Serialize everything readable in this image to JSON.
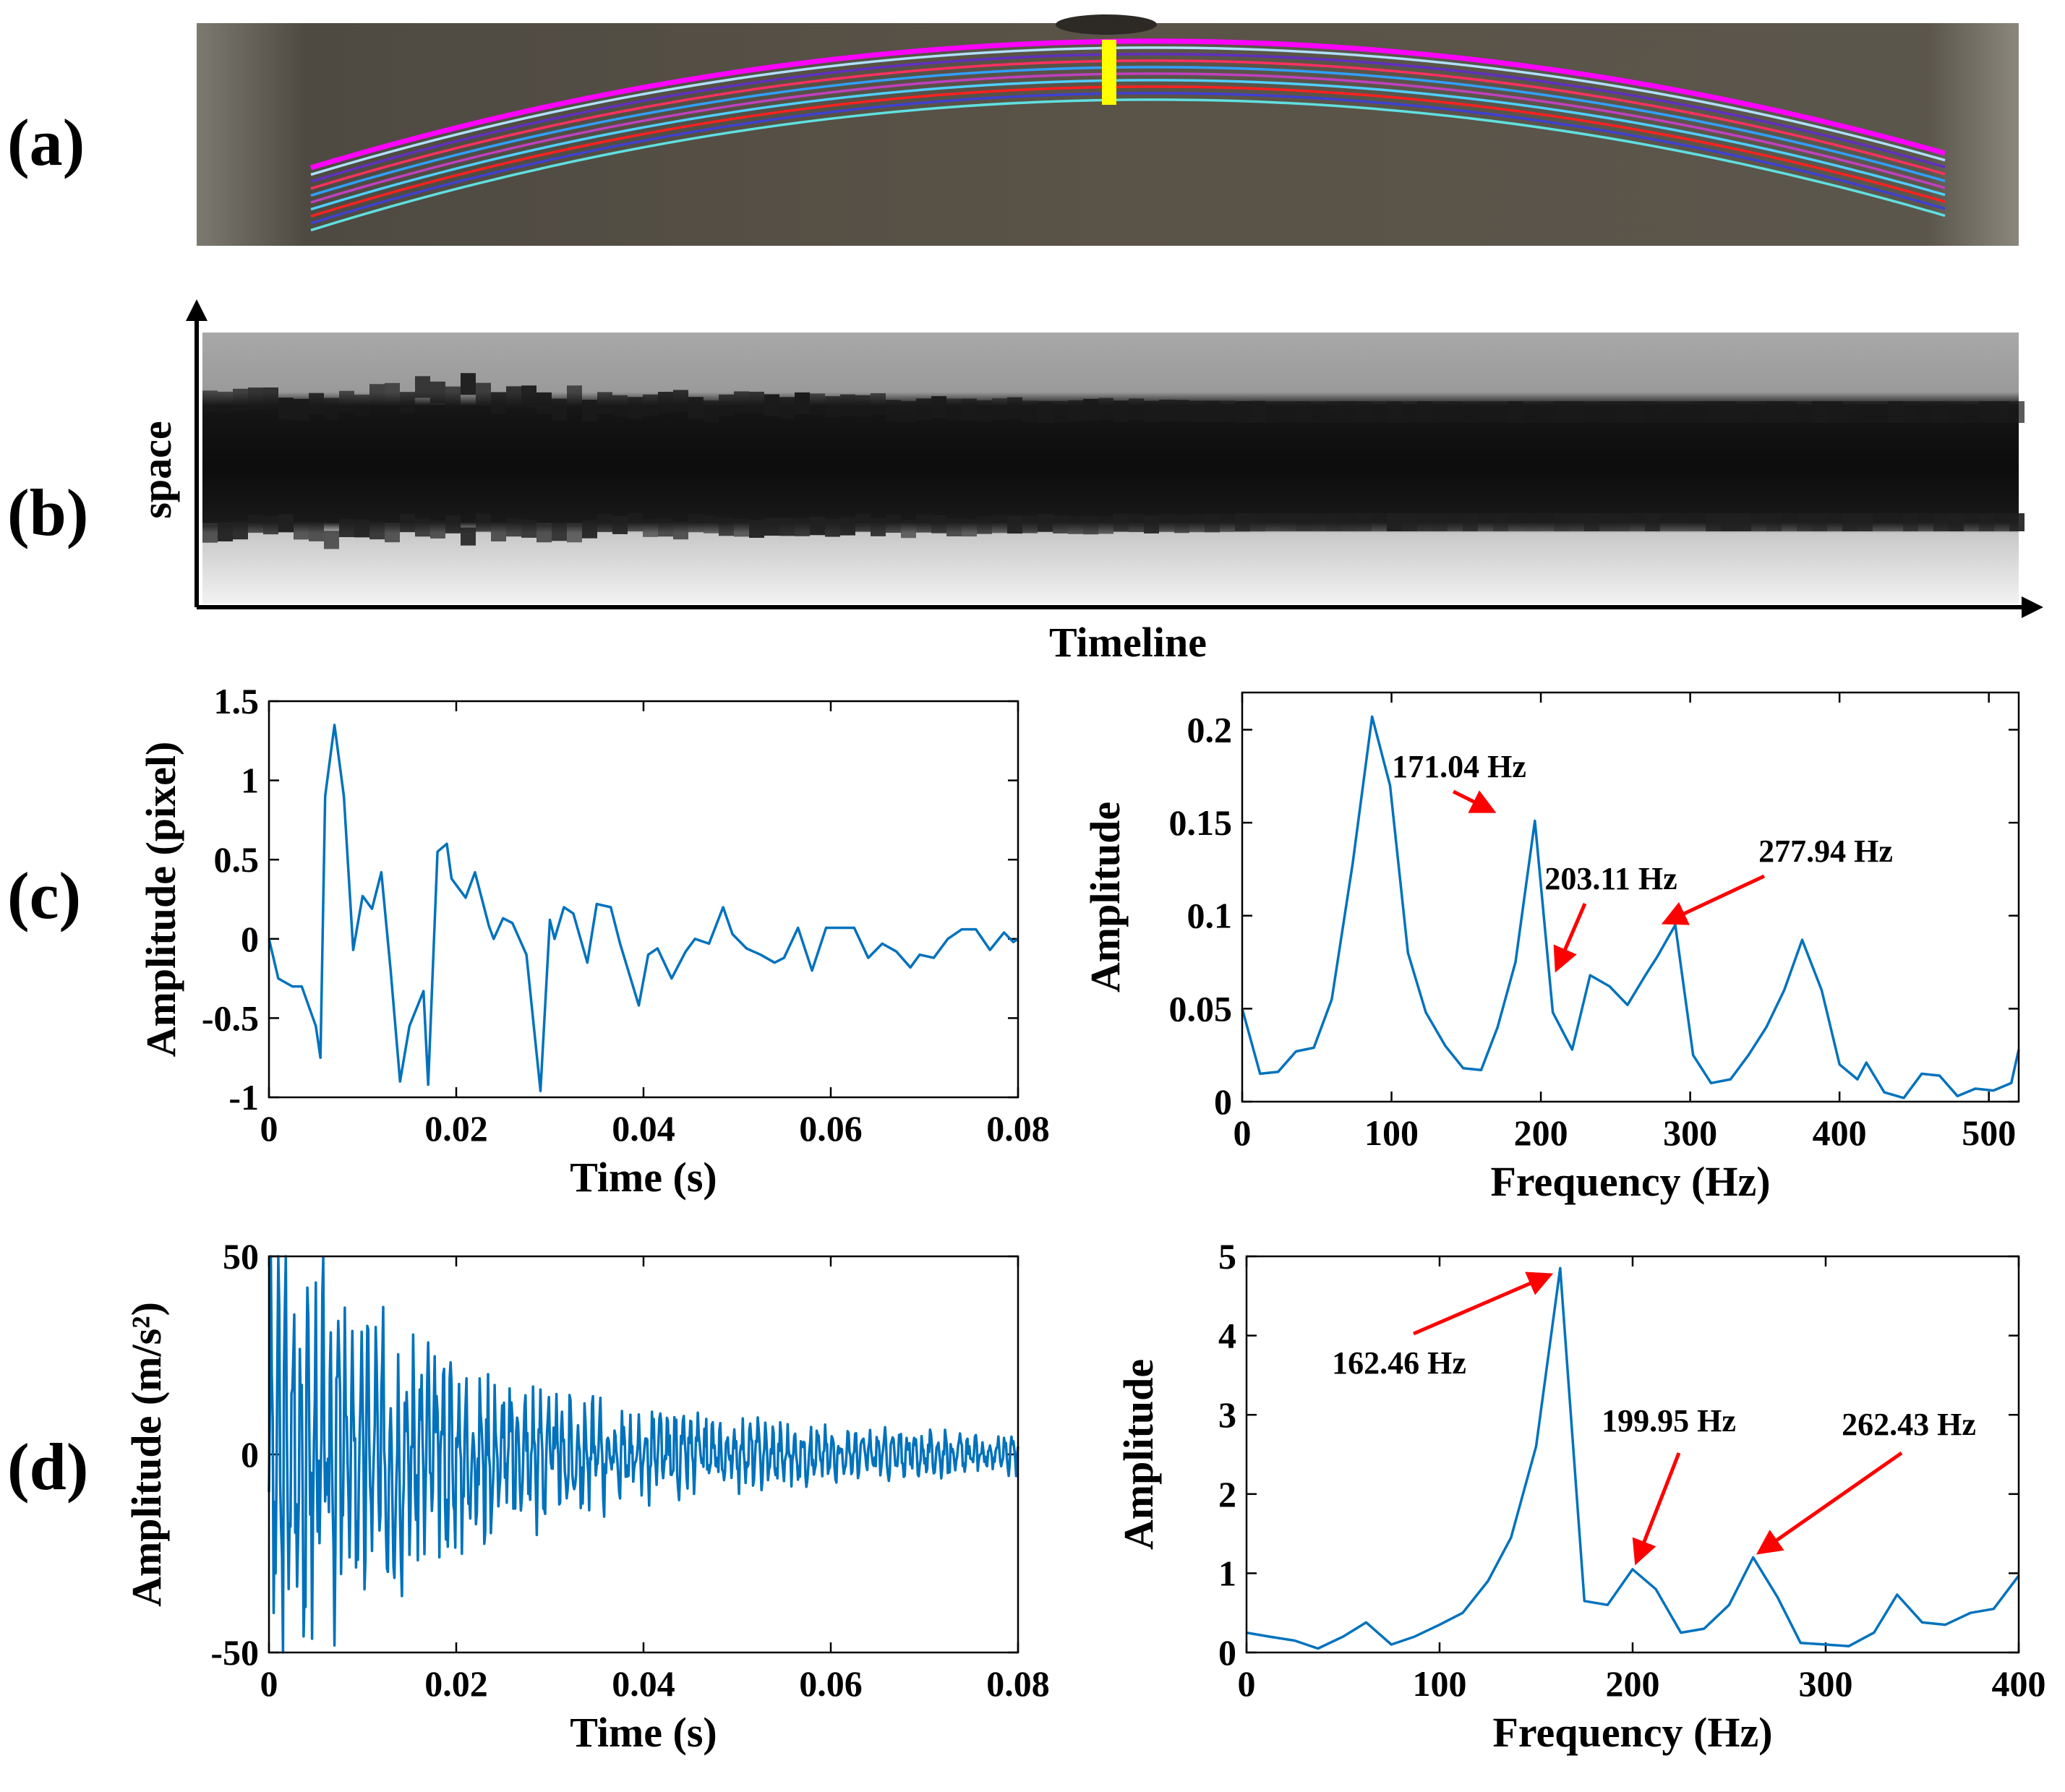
{
  "panel_labels": [
    "(a)",
    "(b)",
    "(c)",
    "(d)"
  ],
  "colors": {
    "series": "#0072BD",
    "annotation_arrow": "#FF0000",
    "marker_bar": "#FFFF00",
    "beam_edge": "#FF00FF"
  },
  "chart_data": [
    {
      "id": "a",
      "type": "image",
      "description_label": "(a)"
    },
    {
      "id": "b",
      "type": "heatmap",
      "ylabel": "space",
      "xlabel": "Timeline"
    },
    {
      "id": "c_time",
      "type": "line",
      "xlabel": "Time (s)",
      "ylabel": "Amplitude (pixel)",
      "xlim": [
        0,
        0.08
      ],
      "ylim": [
        -1,
        1.5
      ],
      "xticks": [
        0,
        0.02,
        0.04,
        0.06,
        0.08
      ],
      "xtick_labels": [
        "0",
        "0.02",
        "0.04",
        "0.06",
        "0.08"
      ],
      "yticks": [
        -1,
        -0.5,
        0,
        0.5,
        1,
        1.5
      ],
      "ytick_labels": [
        "-1",
        "-0.5",
        "0",
        "0.5",
        "1",
        "1.5"
      ],
      "x": [
        0,
        0.001,
        0.0025,
        0.0035,
        0.005,
        0.0055,
        0.006,
        0.007,
        0.008,
        0.009,
        0.01,
        0.011,
        0.012,
        0.013,
        0.014,
        0.015,
        0.0165,
        0.017,
        0.018,
        0.019,
        0.0195,
        0.021,
        0.022,
        0.0235,
        0.024,
        0.025,
        0.026,
        0.0275,
        0.029,
        0.03,
        0.0305,
        0.0315,
        0.0325,
        0.034,
        0.035,
        0.0365,
        0.0375,
        0.0395,
        0.0405,
        0.0415,
        0.043,
        0.0445,
        0.0455,
        0.047,
        0.0485,
        0.0495,
        0.051,
        0.0525,
        0.054,
        0.055,
        0.0565,
        0.058,
        0.0595,
        0.061,
        0.0625,
        0.064,
        0.0655,
        0.067,
        0.0685,
        0.0695,
        0.071,
        0.0725,
        0.074,
        0.0755,
        0.077,
        0.0785,
        0.0795,
        0.08
      ],
      "y": [
        0,
        -0.25,
        -0.3,
        -0.3,
        -0.55,
        -0.75,
        0.9,
        1.35,
        0.9,
        -0.07,
        0.27,
        0.19,
        0.42,
        -0.2,
        -0.9,
        -0.55,
        -0.33,
        -0.92,
        0.55,
        0.6,
        0.38,
        0.26,
        0.42,
        0.08,
        0.0,
        0.13,
        0.1,
        -0.1,
        -0.96,
        0.12,
        0.0,
        0.2,
        0.16,
        -0.15,
        0.22,
        0.2,
        -0.03,
        -0.42,
        -0.1,
        -0.06,
        -0.25,
        -0.08,
        0.0,
        -0.03,
        0.2,
        0.03,
        -0.06,
        -0.1,
        -0.15,
        -0.12,
        0.07,
        -0.2,
        0.07,
        0.07,
        0.07,
        -0.12,
        -0.03,
        -0.08,
        -0.18,
        -0.1,
        -0.12,
        0.0,
        0.06,
        0.06,
        -0.07,
        0.04,
        -0.02,
        0.0
      ]
    },
    {
      "id": "c_freq",
      "type": "line",
      "xlabel": "Frequency (Hz)",
      "ylabel": "Amplitude",
      "xlim": [
        0,
        520
      ],
      "ylim": [
        0,
        0.22
      ],
      "xticks": [
        0,
        100,
        200,
        300,
        400,
        500
      ],
      "xtick_labels": [
        "0",
        "100",
        "200",
        "300",
        "400",
        "500"
      ],
      "yticks": [
        0,
        0.05,
        0.1,
        0.15,
        0.2
      ],
      "ytick_labels": [
        "0",
        "0.05",
        "0.1",
        "0.15",
        "0.2"
      ],
      "x": [
        0,
        12,
        24,
        36,
        48,
        60,
        74,
        87,
        99,
        111,
        123,
        136,
        148,
        160,
        171,
        183,
        196,
        208,
        221,
        233,
        246,
        258,
        270,
        278,
        290,
        302,
        314,
        327,
        339,
        351,
        363,
        375,
        388,
        400,
        412,
        418,
        430,
        443,
        455,
        467,
        479,
        491,
        503,
        515,
        520
      ],
      "y": [
        0.05,
        0.015,
        0.016,
        0.027,
        0.029,
        0.055,
        0.128,
        0.207,
        0.17,
        0.08,
        0.048,
        0.03,
        0.018,
        0.017,
        0.04,
        0.075,
        0.151,
        0.048,
        0.028,
        0.068,
        0.062,
        0.052,
        0.068,
        0.078,
        0.095,
        0.025,
        0.01,
        0.012,
        0.025,
        0.04,
        0.06,
        0.087,
        0.06,
        0.02,
        0.012,
        0.021,
        0.005,
        0.002,
        0.015,
        0.014,
        0.003,
        0.007,
        0.006,
        0.01,
        0.028
      ],
      "annotations": [
        {
          "text": "171.04 Hz"
        },
        {
          "text": "203.11 Hz"
        },
        {
          "text": "277.94 Hz"
        }
      ]
    },
    {
      "id": "d_time",
      "type": "line",
      "xlabel": "Time (s)",
      "ylabel": "Amplitude (m/s²)",
      "xlim": [
        0,
        0.08
      ],
      "ylim": [
        -50,
        50
      ],
      "xticks": [
        0,
        0.02,
        0.04,
        0.06,
        0.08
      ],
      "xtick_labels": [
        "0",
        "0.02",
        "0.04",
        "0.06",
        "0.08"
      ],
      "yticks": [
        -50,
        0,
        50
      ],
      "ytick_labels": [
        "-50",
        "0",
        "50"
      ]
    },
    {
      "id": "d_freq",
      "type": "line",
      "xlabel": "Frequency (Hz)",
      "ylabel": "Amplitude",
      "xlim": [
        0,
        400
      ],
      "ylim": [
        0,
        5
      ],
      "xticks": [
        0,
        100,
        200,
        300,
        400
      ],
      "xtick_labels": [
        "0",
        "100",
        "200",
        "300",
        "400"
      ],
      "yticks": [
        0,
        1,
        2,
        3,
        4,
        5
      ],
      "ytick_labels": [
        "0",
        "1",
        "2",
        "3",
        "4",
        "5"
      ],
      "x": [
        0,
        12,
        25,
        37,
        50,
        62,
        75,
        87,
        100,
        112,
        125,
        137,
        150,
        162.46,
        175,
        187,
        199.95,
        212,
        225,
        237,
        250,
        262.43,
        275,
        287,
        300,
        312,
        325,
        337,
        350,
        362,
        375,
        387,
        400
      ],
      "y": [
        0.25,
        0.2,
        0.15,
        0.05,
        0.2,
        0.38,
        0.1,
        0.2,
        0.35,
        0.5,
        0.9,
        1.45,
        2.6,
        4.85,
        0.65,
        0.6,
        1.05,
        0.8,
        0.25,
        0.3,
        0.6,
        1.2,
        0.7,
        0.12,
        0.1,
        0.08,
        0.25,
        0.73,
        0.38,
        0.35,
        0.5,
        0.55,
        0.97
      ],
      "annotations": [
        {
          "text": "162.46 Hz"
        },
        {
          "text": "199.95 Hz"
        },
        {
          "text": "262.43 Hz"
        }
      ]
    }
  ]
}
